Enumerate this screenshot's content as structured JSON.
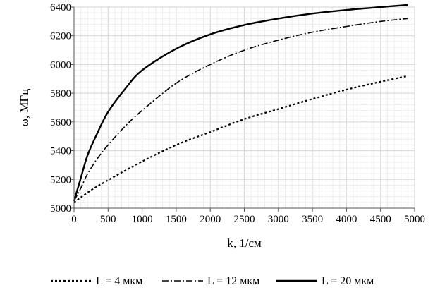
{
  "chart_data": {
    "type": "line",
    "title": "",
    "xlabel": "k, 1/см",
    "ylabel": "ω, МГц",
    "xlim": [
      0,
      5000
    ],
    "ylim": [
      5000,
      6400
    ],
    "x_ticks": [
      0,
      500,
      1000,
      1500,
      2000,
      2500,
      3000,
      3500,
      4000,
      4500,
      5000
    ],
    "y_ticks": [
      5000,
      5200,
      5400,
      5600,
      5800,
      6000,
      6200,
      6400
    ],
    "grid": true,
    "legend_position": "bottom",
    "series": [
      {
        "name": "L = 4 мкм",
        "style": "dotted",
        "color": "#000000",
        "x": [
          0,
          250,
          500,
          1000,
          1500,
          2000,
          2500,
          3000,
          3500,
          4000,
          4500,
          4900
        ],
        "y": [
          5040,
          5125,
          5195,
          5325,
          5440,
          5530,
          5620,
          5690,
          5760,
          5825,
          5880,
          5920
        ]
      },
      {
        "name": "L = 12 мкм",
        "style": "dash-dot",
        "color": "#000000",
        "x": [
          0,
          100,
          200,
          350,
          500,
          750,
          1000,
          1500,
          2000,
          2500,
          3000,
          3500,
          4000,
          4500,
          4900
        ],
        "y": [
          5050,
          5140,
          5240,
          5350,
          5440,
          5570,
          5680,
          5870,
          6000,
          6100,
          6170,
          6225,
          6265,
          6300,
          6320
        ]
      },
      {
        "name": "L = 20 мкм",
        "style": "solid",
        "color": "#000000",
        "x": [
          0,
          100,
          200,
          350,
          500,
          750,
          1000,
          1500,
          2000,
          2500,
          3000,
          3500,
          4000,
          4500,
          4900
        ],
        "y": [
          5050,
          5210,
          5370,
          5530,
          5670,
          5830,
          5960,
          6110,
          6210,
          6275,
          6320,
          6355,
          6380,
          6400,
          6415
        ]
      }
    ]
  }
}
